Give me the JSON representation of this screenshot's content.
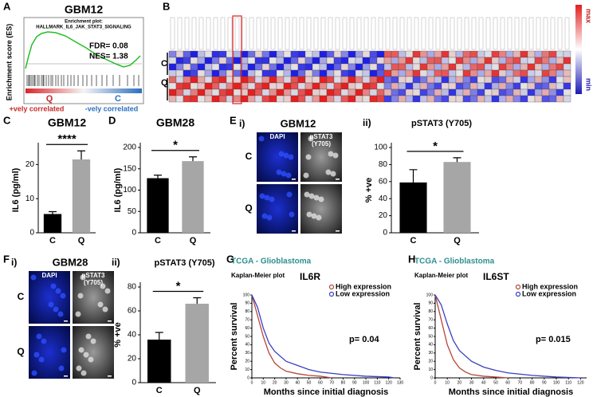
{
  "panel_labels": [
    "A",
    "B",
    "C",
    "D",
    "E",
    "F",
    "G",
    "H"
  ],
  "gsea": {
    "title": "GBM12",
    "subtitle": "Enrichment plot:",
    "gene_set": "HALLMARK_IL6_JAK_STAT3_SIGNALING",
    "ylabel": "Enrichment score (ES)",
    "fdr": "FDR= 0.08",
    "nes": "NES= 1.38",
    "left_group": "Q",
    "right_group": "C",
    "left_note": "+vely correlated",
    "right_note": "-vely correlated"
  },
  "heatmap": {
    "groups": [
      "C",
      "Q"
    ],
    "scale_max": "max",
    "scale_min": "min"
  },
  "micrographs": [
    {
      "sublabel": "i)",
      "title": "GBM12",
      "columns": [
        [
          "DAPI"
        ],
        [
          "pSTAT3",
          "(Y705)"
        ]
      ],
      "rows": [
        "C",
        "Q"
      ]
    },
    {
      "sublabel": "i)",
      "title": "GBM28",
      "columns": [
        [
          "DAPI"
        ],
        [
          "pSTAT3",
          "(Y705)"
        ]
      ],
      "rows": [
        "C",
        "Q"
      ]
    }
  ],
  "chart_data": [
    {
      "type": "bar",
      "title": "GBM12",
      "ylabel": "IL6 (pg/ml)",
      "categories": [
        "C",
        "Q"
      ],
      "values": [
        5.5,
        21.5
      ],
      "errors": [
        0.7,
        2.5
      ],
      "colors": [
        "#000000",
        "#a6a6a6"
      ],
      "ylim": [
        0,
        25
      ],
      "yticks": [
        0,
        10,
        20
      ],
      "significance": "****"
    },
    {
      "type": "bar",
      "title": "GBM28",
      "ylabel": "IL6 (pg/ml)",
      "categories": [
        "C",
        "Q"
      ],
      "values": [
        128,
        168
      ],
      "errors": [
        7,
        10
      ],
      "colors": [
        "#000000",
        "#a6a6a6"
      ],
      "ylim": [
        0,
        200
      ],
      "yticks": [
        0,
        50,
        100,
        150,
        200
      ],
      "significance": "*"
    },
    {
      "type": "bar",
      "sublabel": "ii)",
      "title": "pSTAT3 (Y705)",
      "ylabel": "% +ve",
      "categories": [
        "C",
        "Q"
      ],
      "values": [
        59,
        83
      ],
      "errors": [
        15,
        5
      ],
      "colors": [
        "#000000",
        "#a6a6a6"
      ],
      "ylim": [
        0,
        100
      ],
      "yticks": [
        0,
        20,
        40,
        60,
        80,
        100
      ],
      "significance": "*"
    },
    {
      "type": "bar",
      "sublabel": "ii)",
      "title": "pSTAT3 (Y705)",
      "ylabel": "% +ve",
      "categories": [
        "C",
        "Q"
      ],
      "values": [
        36,
        66
      ],
      "errors": [
        6,
        5
      ],
      "colors": [
        "#000000",
        "#a6a6a6"
      ],
      "ylim": [
        0,
        80
      ],
      "yticks": [
        0,
        20,
        40,
        60,
        80
      ],
      "significance": "*"
    },
    {
      "type": "line",
      "source": "TCGA - Glioblastoma",
      "subtitle": "Kaplan-Meier plot",
      "title": "IL6R",
      "ylabel": "Percent survival",
      "xlabel": "Months since initial diagnosis",
      "annotation": "p= 0.04",
      "legend": "top-right",
      "xlim": [
        0,
        130
      ],
      "xticks": [
        0,
        10,
        20,
        30,
        40,
        50,
        60,
        70,
        80,
        90,
        100,
        110,
        120,
        130
      ],
      "ylim": [
        0,
        100
      ],
      "yticks": [
        0,
        10,
        20,
        30,
        40,
        50,
        60,
        70,
        80,
        90,
        100
      ],
      "series": [
        {
          "name": "High expression",
          "color": "#b5473a",
          "x": [
            0,
            5,
            10,
            15,
            20,
            25,
            30,
            40,
            50,
            60,
            70
          ],
          "values": [
            100,
            75,
            50,
            30,
            18,
            12,
            8,
            5,
            3,
            2,
            0
          ]
        },
        {
          "name": "Low expression",
          "color": "#3a3fbf",
          "x": [
            0,
            5,
            10,
            15,
            20,
            30,
            40,
            50,
            60,
            80,
            100,
            120,
            125
          ],
          "values": [
            100,
            85,
            60,
            42,
            32,
            20,
            15,
            10,
            7,
            4,
            2,
            1,
            0
          ]
        }
      ]
    },
    {
      "type": "line",
      "source": "TCGA - Glioblastoma",
      "subtitle": "Kaplan-Meier plot",
      "title": "IL6ST",
      "ylabel": "Percent survival",
      "xlabel": "Months since initial diagnosis",
      "annotation": "p= 0.015",
      "legend": "top-right",
      "xlim": [
        0,
        125
      ],
      "xticks": [
        0,
        10,
        20,
        30,
        40,
        50,
        60,
        70,
        80,
        90,
        100,
        110,
        120
      ],
      "ylim": [
        0,
        100
      ],
      "yticks": [
        0,
        10,
        20,
        30,
        40,
        50,
        60,
        70,
        80,
        90,
        100
      ],
      "series": [
        {
          "name": "High expression",
          "color": "#b5473a",
          "x": [
            0,
            5,
            10,
            15,
            20,
            25,
            30,
            40,
            50,
            60
          ],
          "values": [
            100,
            70,
            40,
            22,
            12,
            7,
            4,
            2,
            1,
            0
          ]
        },
        {
          "name": "Low expression",
          "color": "#3a3fbf",
          "x": [
            0,
            5,
            10,
            15,
            20,
            30,
            40,
            50,
            60,
            80,
            100,
            120
          ],
          "values": [
            100,
            88,
            65,
            45,
            33,
            20,
            13,
            9,
            6,
            3,
            1,
            0
          ]
        }
      ]
    }
  ]
}
